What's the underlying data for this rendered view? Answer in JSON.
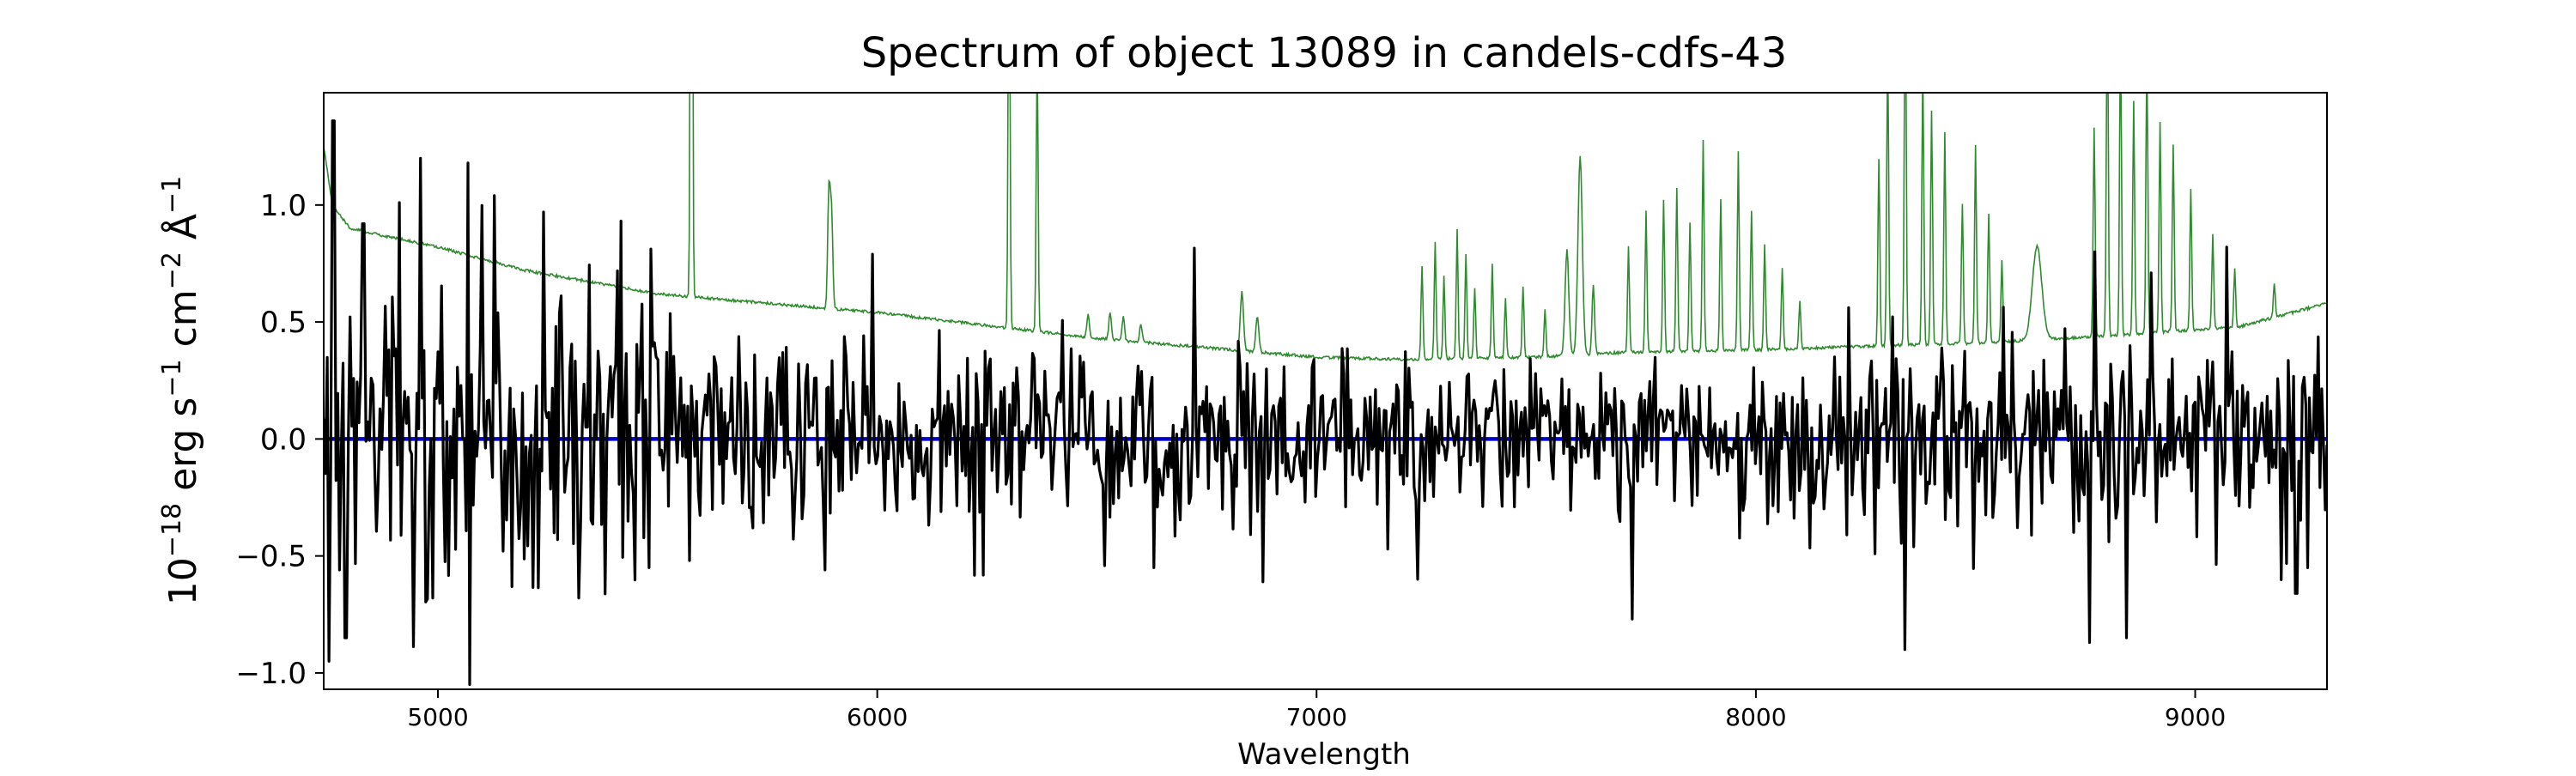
{
  "chart_data": {
    "type": "line",
    "title": "Spectrum of object 13089 in candels-cdfs-43",
    "xlabel": "Wavelength",
    "ylabel_base": "10",
    "ylabel_exp": "−18",
    "ylabel_unit1": " erg s",
    "ylabel_exp2": "−1",
    "ylabel_unit2": " cm",
    "ylabel_exp3": "−2",
    "ylabel_unit3": " Å",
    "ylabel_exp4": "−1",
    "xlim": [
      4740,
      9300
    ],
    "ylim": [
      -1.07,
      1.48
    ],
    "x_ticks": [
      5000,
      6000,
      7000,
      8000,
      9000
    ],
    "x_tick_labels": [
      "5000",
      "6000",
      "7000",
      "8000",
      "9000"
    ],
    "y_ticks": [
      -1.0,
      -0.5,
      0.0,
      0.5,
      1.0
    ],
    "y_tick_labels": [
      "−1.0",
      "−0.5",
      "0.0",
      "0.5",
      "1.0"
    ],
    "grid": false,
    "colors": {
      "flux": "#000000",
      "error": "#2e8b2e",
      "zero": "#0000cc"
    },
    "series": [
      {
        "key": "error",
        "continuum_x": [
          4740,
          4760,
          4800,
          5000,
          5200,
          5500,
          6000,
          6500,
          7000,
          7200,
          7500,
          7700,
          8000,
          8300,
          8500,
          8800,
          9100,
          9300
        ],
        "continuum_y": [
          1.25,
          1.0,
          0.9,
          0.82,
          0.72,
          0.62,
          0.54,
          0.43,
          0.35,
          0.34,
          0.35,
          0.37,
          0.38,
          0.4,
          0.41,
          0.44,
          0.48,
          0.58
        ],
        "lines": [
          [
            5577,
            4.0,
            6
          ],
          [
            5890,
            0.5,
            8
          ],
          [
            5896,
            0.4,
            8
          ],
          [
            6300,
            1.8,
            6
          ],
          [
            6364,
            1.2,
            6
          ],
          [
            6480,
            0.1,
            8
          ],
          [
            6530,
            0.12,
            8
          ],
          [
            6560,
            0.1,
            8
          ],
          [
            6600,
            0.08,
            8
          ],
          [
            6830,
            0.25,
            10
          ],
          [
            6865,
            0.15,
            10
          ],
          [
            7240,
            0.4,
            6
          ],
          [
            7270,
            0.5,
            6
          ],
          [
            7290,
            0.35,
            6
          ],
          [
            7320,
            0.55,
            6
          ],
          [
            7340,
            0.45,
            6
          ],
          [
            7360,
            0.3,
            6
          ],
          [
            7400,
            0.4,
            6
          ],
          [
            7430,
            0.25,
            6
          ],
          [
            7470,
            0.3,
            6
          ],
          [
            7520,
            0.2,
            6
          ],
          [
            7570,
            0.45,
            12
          ],
          [
            7600,
            0.85,
            14
          ],
          [
            7630,
            0.3,
            8
          ],
          [
            7710,
            0.45,
            6
          ],
          [
            7750,
            0.6,
            6
          ],
          [
            7790,
            0.65,
            6
          ],
          [
            7820,
            0.7,
            6
          ],
          [
            7850,
            0.55,
            6
          ],
          [
            7880,
            0.9,
            6
          ],
          [
            7920,
            0.65,
            6
          ],
          [
            7960,
            0.85,
            6
          ],
          [
            7990,
            0.6,
            6
          ],
          [
            8020,
            0.45,
            6
          ],
          [
            8060,
            0.35,
            6
          ],
          [
            8100,
            0.2,
            6
          ],
          [
            8280,
            0.8,
            6
          ],
          [
            8300,
            1.3,
            6
          ],
          [
            8340,
            1.6,
            6
          ],
          [
            8380,
            1.2,
            6
          ],
          [
            8400,
            1.0,
            6
          ],
          [
            8430,
            0.9,
            6
          ],
          [
            8470,
            0.6,
            6
          ],
          [
            8500,
            0.85,
            6
          ],
          [
            8530,
            0.55,
            6
          ],
          [
            8560,
            0.35,
            6
          ],
          [
            8640,
            0.4,
            30
          ],
          [
            8770,
            0.9,
            6
          ],
          [
            8800,
            1.5,
            6
          ],
          [
            8830,
            1.3,
            6
          ],
          [
            8860,
            1.0,
            6
          ],
          [
            8890,
            1.2,
            6
          ],
          [
            8920,
            0.9,
            6
          ],
          [
            8950,
            0.8,
            6
          ],
          [
            8990,
            0.6,
            6
          ],
          [
            9040,
            0.4,
            6
          ],
          [
            9090,
            0.25,
            6
          ],
          [
            9180,
            0.15,
            6
          ]
        ]
      },
      {
        "key": "flux",
        "x_start": 4740,
        "x_end": 9300,
        "n": 1140,
        "seed": 13089,
        "spikes": [
          [
            4762,
            1.36
          ],
          [
            4752,
            -0.95
          ],
          [
            4790,
            -0.85
          ],
          [
            4830,
            0.92
          ],
          [
            4960,
            1.2
          ],
          [
            4990,
            -0.68
          ],
          [
            5070,
            1.18
          ],
          [
            5130,
            1.04
          ],
          [
            5240,
            0.97
          ],
          [
            5320,
            -0.68
          ],
          [
            5480,
            -0.55
          ],
          [
            5990,
            0.79
          ],
          [
            6630,
            -0.55
          ],
          [
            7230,
            -0.6
          ],
          [
            7720,
            -0.77
          ],
          [
            8340,
            -0.9
          ],
          [
            8770,
            0.8
          ],
          [
            8760,
            -0.87
          ],
          [
            8845,
            -0.85
          ],
          [
            8900,
            0.71
          ],
          [
            9070,
            0.82
          ],
          [
            9230,
            -0.66
          ]
        ]
      },
      {
        "key": "zero",
        "y": 0.0
      }
    ]
  }
}
